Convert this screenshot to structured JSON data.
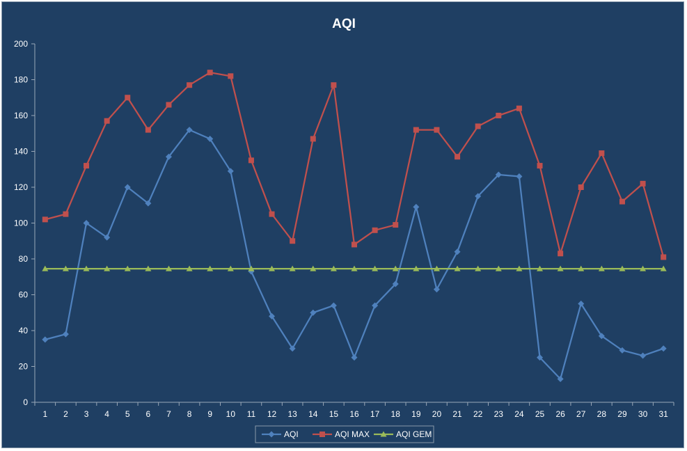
{
  "chart_data": {
    "type": "line",
    "title": "AQI",
    "xlabel": "",
    "ylabel": "",
    "ylim": [
      0,
      200
    ],
    "yticks": [
      0,
      20,
      40,
      60,
      80,
      100,
      120,
      140,
      160,
      180,
      200
    ],
    "categories": [
      "1",
      "2",
      "3",
      "4",
      "5",
      "6",
      "7",
      "8",
      "9",
      "10",
      "11",
      "12",
      "13",
      "14",
      "15",
      "16",
      "17",
      "18",
      "19",
      "20",
      "21",
      "22",
      "23",
      "24",
      "25",
      "26",
      "27",
      "28",
      "29",
      "30",
      "31"
    ],
    "grid": false,
    "legend": "bottom",
    "background": "#1F3F63",
    "series": [
      {
        "name": "AQI",
        "color": "#4F81BD",
        "marker": "diamond",
        "values": [
          35,
          38,
          100,
          92,
          120,
          111,
          137,
          152,
          147,
          129,
          73,
          48,
          30,
          50,
          54,
          25,
          54,
          66,
          109,
          63,
          84,
          115,
          127,
          126,
          25,
          13,
          55,
          37,
          29,
          26,
          30
        ]
      },
      {
        "name": "AQI MAX",
        "color": "#C0504D",
        "marker": "square",
        "values": [
          102,
          105,
          132,
          157,
          170,
          152,
          166,
          177,
          184,
          182,
          135,
          105,
          90,
          147,
          177,
          88,
          96,
          99,
          152,
          152,
          137,
          154,
          160,
          164,
          132,
          83,
          120,
          139,
          112,
          122,
          81
        ]
      },
      {
        "name": "AQI GEM",
        "color": "#9BBB59",
        "marker": "triangle",
        "values": [
          74.5,
          74.5,
          74.5,
          74.5,
          74.5,
          74.5,
          74.5,
          74.5,
          74.5,
          74.5,
          74.5,
          74.5,
          74.5,
          74.5,
          74.5,
          74.5,
          74.5,
          74.5,
          74.5,
          74.5,
          74.5,
          74.5,
          74.5,
          74.5,
          74.5,
          74.5,
          74.5,
          74.5,
          74.5,
          74.5,
          74.5
        ]
      }
    ]
  }
}
